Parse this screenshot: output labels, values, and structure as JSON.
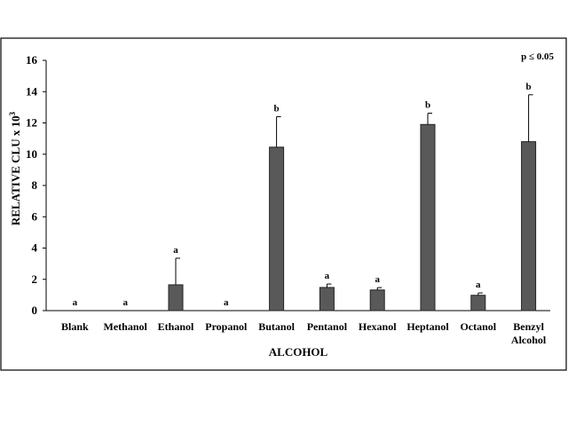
{
  "chart_data": {
    "type": "bar",
    "categories": [
      "Blank",
      "Methanol",
      "Ethanol",
      "Propanol",
      "Butanol",
      "Pentanol",
      "Hexanol",
      "Heptanol",
      "Octanol",
      "Benzyl Alcohol"
    ],
    "values": [
      0,
      0,
      1.65,
      0,
      10.45,
      1.48,
      1.32,
      11.9,
      0.98,
      10.8
    ],
    "error_plus": [
      0,
      0,
      1.7,
      0,
      1.95,
      0.22,
      0.15,
      0.72,
      0.15,
      3.0
    ],
    "significance_letters": [
      "a",
      "a",
      "a",
      "a",
      "b",
      "a",
      "a",
      "b",
      "a",
      "b"
    ],
    "xlabel": "ALCOHOL",
    "ylabel": "RELATIVE CLU x 10",
    "ylabel_superscript": "3",
    "ylim": [
      0,
      16
    ],
    "yticks": [
      0,
      2,
      4,
      6,
      8,
      10,
      12,
      14,
      16
    ],
    "annotation": "p ≤ 0.05",
    "bar_color": "#595959",
    "grid": false
  }
}
